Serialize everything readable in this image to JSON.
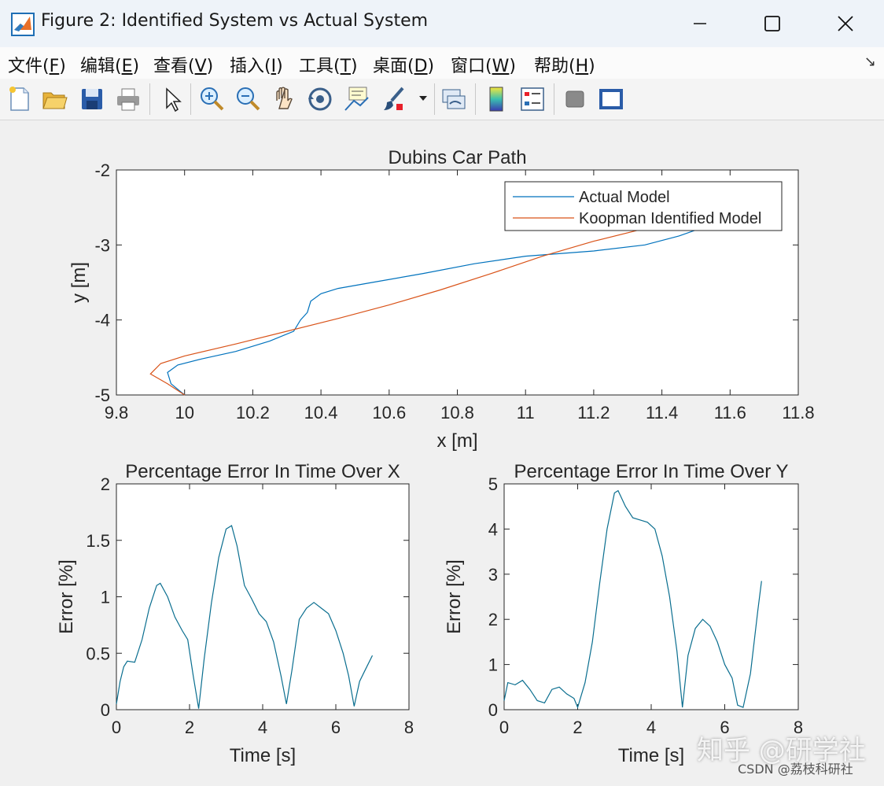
{
  "window": {
    "title": "Figure 2: Identified System vs Actual System",
    "buttons": [
      "minimize-icon",
      "maximize-icon",
      "close-icon"
    ]
  },
  "menu": {
    "items": [
      {
        "text": "文件(",
        "key": "F",
        "end": ")"
      },
      {
        "text": "编辑(",
        "key": "E",
        "end": ")"
      },
      {
        "text": "查看(",
        "key": "V",
        "end": ")"
      },
      {
        "text": "插入(",
        "key": "I",
        "end": ")"
      },
      {
        "text": "工具(",
        "key": "T",
        "end": ")"
      },
      {
        "text": "桌面(",
        "key": "D",
        "end": ")"
      },
      {
        "text": "窗口(",
        "key": "W",
        "end": ")"
      },
      {
        "text": "帮助(",
        "key": "H",
        "end": ")"
      }
    ],
    "dock_icon": "↘"
  },
  "toolbar": {
    "icons": [
      "new-figure-icon",
      "open-file-icon",
      "save-icon",
      "print-icon",
      "select-arrow-icon",
      "zoom-in-icon",
      "zoom-out-icon",
      "pan-hand-icon",
      "rotate-3d-icon",
      "data-cursor-icon",
      "brush-icon",
      "brush-dropdown-icon",
      "link-plot-icon",
      "colorbar-icon",
      "legend-icon",
      "hide-plot-tools-icon",
      "show-plot-tools-icon"
    ]
  },
  "colors": {
    "actual": "#0072BD",
    "koopman": "#D95319",
    "error_line": "#0A6E8F"
  },
  "chart_data": [
    {
      "type": "line",
      "title": "Dubins Car Path",
      "xlabel": "x [m]",
      "ylabel": "y [m]",
      "xlim": [
        9.8,
        11.8
      ],
      "ylim": [
        -5,
        -2
      ],
      "xticks": [
        "9.8",
        "10",
        "10.2",
        "10.4",
        "10.6",
        "10.8",
        "11",
        "11.2",
        "11.4",
        "11.6",
        "11.8"
      ],
      "yticks": [
        "-5",
        "-4",
        "-3",
        "-2"
      ],
      "legend": {
        "position": "top-right",
        "entries": [
          "Actual Model",
          "Koopman Identified Model"
        ]
      },
      "series": [
        {
          "name": "Actual Model",
          "x": [
            10.0,
            9.96,
            9.95,
            9.98,
            10.05,
            10.15,
            10.25,
            10.32,
            10.34,
            10.36,
            10.37,
            10.4,
            10.45,
            10.55,
            10.7,
            10.85,
            11.0,
            11.2,
            11.35,
            11.45,
            11.5
          ],
          "y": [
            -5.0,
            -4.85,
            -4.7,
            -4.6,
            -4.52,
            -4.42,
            -4.28,
            -4.15,
            -4.0,
            -3.9,
            -3.75,
            -3.65,
            -3.58,
            -3.5,
            -3.38,
            -3.25,
            -3.15,
            -3.08,
            -3.0,
            -2.88,
            -2.8
          ]
        },
        {
          "name": "Koopman Identified Model",
          "x": [
            10.0,
            9.95,
            9.9,
            9.93,
            10.0,
            10.15,
            10.3,
            10.45,
            10.6,
            10.75,
            10.9,
            11.05,
            11.2,
            11.35
          ],
          "y": [
            -5.0,
            -4.85,
            -4.72,
            -4.58,
            -4.48,
            -4.32,
            -4.15,
            -3.98,
            -3.8,
            -3.6,
            -3.38,
            -3.15,
            -2.95,
            -2.78
          ]
        }
      ]
    },
    {
      "type": "line",
      "title": "Percentage Error In Time Over X",
      "xlabel": "Time [s]",
      "ylabel": "Error [%]",
      "xlim": [
        0,
        8
      ],
      "ylim": [
        0,
        2
      ],
      "xticks": [
        "0",
        "2",
        "4",
        "6",
        "8"
      ],
      "yticks": [
        "0",
        "0.5",
        "1",
        "1.5",
        "2"
      ],
      "series": [
        {
          "x": [
            0,
            0.1,
            0.2,
            0.3,
            0.5,
            0.7,
            0.9,
            1.1,
            1.2,
            1.4,
            1.6,
            1.8,
            1.95,
            2.1,
            2.25,
            2.4,
            2.6,
            2.8,
            3.0,
            3.15,
            3.3,
            3.5,
            3.7,
            3.9,
            4.1,
            4.3,
            4.5,
            4.65,
            4.8,
            5.0,
            5.2,
            5.4,
            5.6,
            5.8,
            6.0,
            6.2,
            6.35,
            6.5,
            6.65,
            6.8,
            7.0
          ],
          "y": [
            0.05,
            0.25,
            0.38,
            0.43,
            0.42,
            0.62,
            0.9,
            1.1,
            1.12,
            1.0,
            0.82,
            0.7,
            0.62,
            0.3,
            0.01,
            0.45,
            0.95,
            1.35,
            1.6,
            1.63,
            1.45,
            1.1,
            0.98,
            0.85,
            0.78,
            0.6,
            0.3,
            0.05,
            0.35,
            0.8,
            0.9,
            0.95,
            0.9,
            0.85,
            0.7,
            0.5,
            0.3,
            0.03,
            0.25,
            0.35,
            0.48
          ]
        }
      ]
    },
    {
      "type": "line",
      "title": "Percentage Error In Time Over Y",
      "xlabel": "Time [s]",
      "ylabel": "Error [%]",
      "xlim": [
        0,
        8
      ],
      "ylim": [
        0,
        5
      ],
      "xticks": [
        "0",
        "2",
        "4",
        "6",
        "8"
      ],
      "yticks": [
        "0",
        "1",
        "2",
        "3",
        "4",
        "5"
      ],
      "series": [
        {
          "x": [
            0,
            0.1,
            0.3,
            0.5,
            0.7,
            0.9,
            1.1,
            1.3,
            1.5,
            1.7,
            1.9,
            2.0,
            2.2,
            2.4,
            2.6,
            2.8,
            3.0,
            3.1,
            3.3,
            3.5,
            3.7,
            3.9,
            4.1,
            4.3,
            4.5,
            4.7,
            4.85,
            5.0,
            5.2,
            5.4,
            5.6,
            5.8,
            6.0,
            6.2,
            6.35,
            6.5,
            6.7,
            6.9,
            7.0
          ],
          "y": [
            0.2,
            0.6,
            0.55,
            0.65,
            0.45,
            0.2,
            0.15,
            0.45,
            0.5,
            0.35,
            0.25,
            0.05,
            0.6,
            1.5,
            2.8,
            4.0,
            4.8,
            4.85,
            4.5,
            4.25,
            4.2,
            4.15,
            4.0,
            3.4,
            2.5,
            1.3,
            0.05,
            1.2,
            1.8,
            2.0,
            1.85,
            1.5,
            1.0,
            0.7,
            0.1,
            0.05,
            0.8,
            2.2,
            2.85
          ]
        }
      ]
    }
  ],
  "watermark": {
    "main": "知乎 @研学社",
    "sub": "CSDN @荔枝科研社"
  }
}
